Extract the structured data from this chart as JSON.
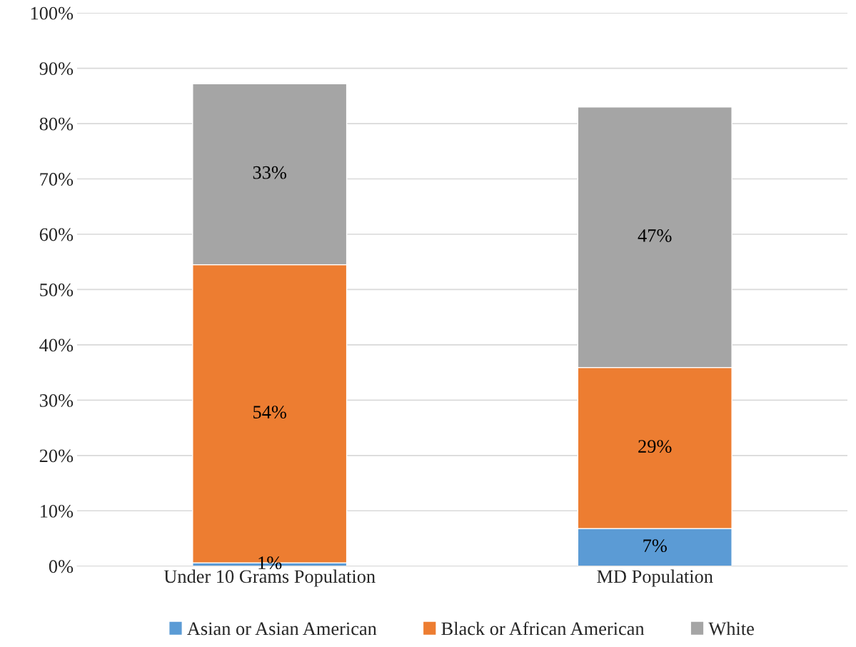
{
  "chart_data": {
    "type": "bar",
    "stacked": true,
    "categories": [
      "Under 10 Grams Population",
      "MD Population"
    ],
    "series": [
      {
        "name": "Asian or Asian American",
        "color": "#5b9bd5",
        "values": [
          0.6,
          6.8
        ],
        "value_labels": [
          "1%",
          "7%"
        ]
      },
      {
        "name": "Black or African American",
        "color": "#ed7d31",
        "values": [
          53.9,
          29.1
        ],
        "value_labels": [
          "54%",
          "29%"
        ]
      },
      {
        "name": "White",
        "color": "#a5a5a5",
        "values": [
          32.7,
          47.1
        ],
        "value_labels": [
          "33%",
          "47%"
        ]
      }
    ],
    "ylim": [
      0,
      100
    ],
    "yticks": [
      {
        "value": 0,
        "label": "0%"
      },
      {
        "value": 10,
        "label": "10%"
      },
      {
        "value": 20,
        "label": "20%"
      },
      {
        "value": 30,
        "label": "30%"
      },
      {
        "value": 40,
        "label": "40%"
      },
      {
        "value": 50,
        "label": "50%"
      },
      {
        "value": 60,
        "label": "60%"
      },
      {
        "value": 70,
        "label": "70%"
      },
      {
        "value": 80,
        "label": "80%"
      },
      {
        "value": 90,
        "label": "90%"
      },
      {
        "value": 100,
        "label": "100%"
      }
    ],
    "grid": "y",
    "legend": "bottom"
  }
}
